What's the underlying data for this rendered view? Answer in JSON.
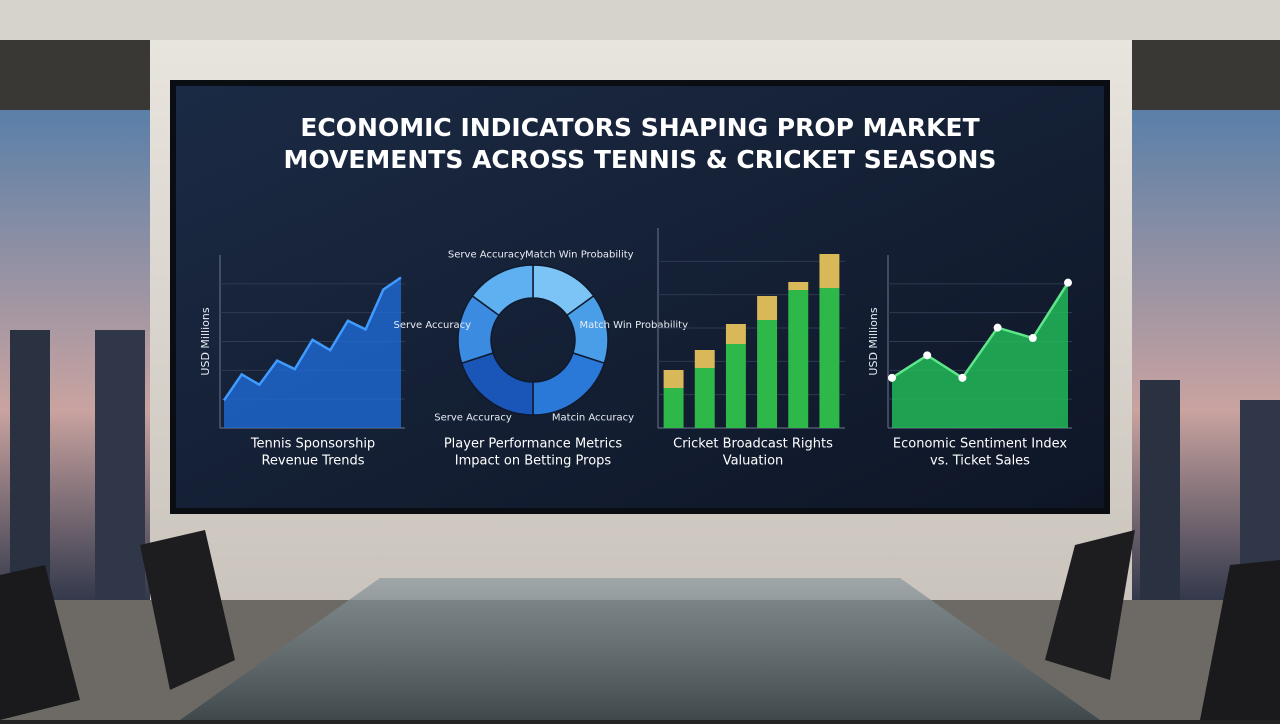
{
  "title": [
    "ECONOMIC INDICATORS SHAPING PROP MARKET",
    "MOVEMENTS ACROSS TENNIS & CRICKET SEASONS"
  ],
  "chart_data": [
    {
      "type": "area",
      "title": [
        "Tennis Sponsorship",
        "Revenue Trends"
      ],
      "y_label": "USD Millions",
      "categories": [
        null,
        null,
        null,
        null,
        null,
        null,
        null,
        null,
        null,
        null,
        null
      ],
      "values": [
        16,
        31,
        25,
        39,
        34,
        51,
        45,
        62,
        57,
        80,
        87
      ],
      "color": "#1f6fe0",
      "ylim": [
        0,
        100
      ]
    },
    {
      "type": "donut",
      "title": [
        "Player Performance Metrics",
        "Impact on Betting Props"
      ],
      "categories": [
        "Match Win Probability",
        "Match Win Probability",
        "Matcin Accuracy",
        "Serve Accuracy",
        "Serve Accuracy",
        "Serve Accuracy"
      ],
      "values": [
        15,
        15,
        20,
        20,
        15,
        15
      ],
      "colors": [
        "#7cc4f5",
        "#4a9ee8",
        "#2a78d8",
        "#1a55b8",
        "#3b8be0",
        "#5fb0f0"
      ]
    },
    {
      "type": "bar",
      "title": [
        "Cricket Broadcast Rights",
        "Valuation"
      ],
      "categories": [
        null,
        null,
        null,
        null,
        null,
        null
      ],
      "series": [
        {
          "color": "#2fb84a",
          "values": [
            20,
            30,
            42,
            54,
            69,
            70
          ]
        },
        {
          "color": "#d9b85a",
          "values": [
            9,
            9,
            10,
            12,
            4,
            17
          ]
        }
      ],
      "ylim": [
        0,
        100
      ]
    },
    {
      "type": "line",
      "title": [
        "Economic Sentiment Index",
        "vs. Ticket Sales"
      ],
      "y_label": "USD Millions",
      "categories": [
        null,
        null,
        null,
        null,
        null,
        null
      ],
      "values": [
        29,
        42,
        29,
        58,
        52,
        84
      ],
      "color": "#22c35a",
      "ylim": [
        0,
        100
      ]
    }
  ]
}
